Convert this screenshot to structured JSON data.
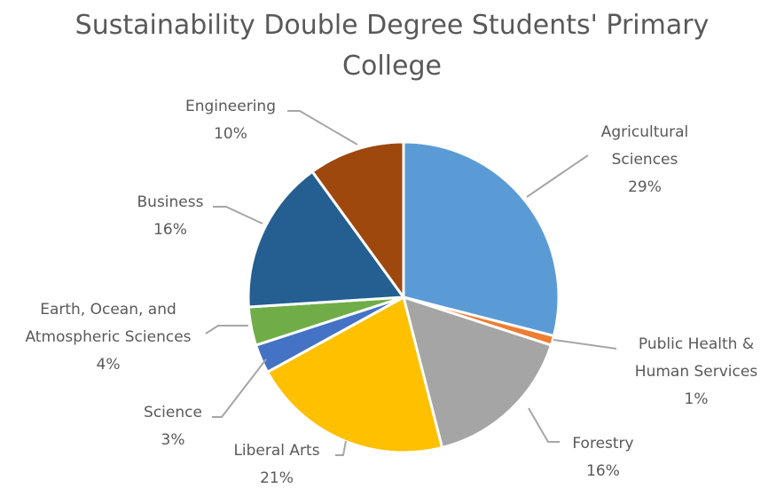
{
  "title_lines": [
    "Sustainability Double Degree Students' Primary",
    "College"
  ],
  "chart_data": {
    "type": "pie",
    "title": "Sustainability Double Degree Students' Primary College",
    "start_angle_deg": 0,
    "direction": "clockwise",
    "legend": "none",
    "slices": [
      {
        "label": "Agricultural Sciences",
        "label_lines": [
          "Agricultural",
          "Sciences"
        ],
        "percent_label": "29%",
        "value": 29,
        "color": "#5B9BD5"
      },
      {
        "label": "Public Health & Human Services",
        "label_lines": [
          "Public Health &",
          "Human Services"
        ],
        "percent_label": "1%",
        "value": 1,
        "color": "#ED7D31"
      },
      {
        "label": "Forestry",
        "label_lines": [
          "Forestry"
        ],
        "percent_label": "16%",
        "value": 16,
        "color": "#A5A5A5"
      },
      {
        "label": "Liberal Arts",
        "label_lines": [
          "Liberal Arts"
        ],
        "percent_label": "21%",
        "value": 21,
        "color": "#FFC000"
      },
      {
        "label": "Science",
        "label_lines": [
          "Science"
        ],
        "percent_label": "3%",
        "value": 3,
        "color": "#4472C4"
      },
      {
        "label": "Earth, Ocean, and Atmospheric Sciences",
        "label_lines": [
          "Earth, Ocean, and",
          "Atmospheric Sciences"
        ],
        "percent_label": "4%",
        "value": 4,
        "color": "#70AD47"
      },
      {
        "label": "Business",
        "label_lines": [
          "Business"
        ],
        "percent_label": "16%",
        "value": 16,
        "color": "#255E91"
      },
      {
        "label": "Engineering",
        "label_lines": [
          "Engineering"
        ],
        "percent_label": "10%",
        "value": 10,
        "color": "#9E480E"
      }
    ]
  }
}
